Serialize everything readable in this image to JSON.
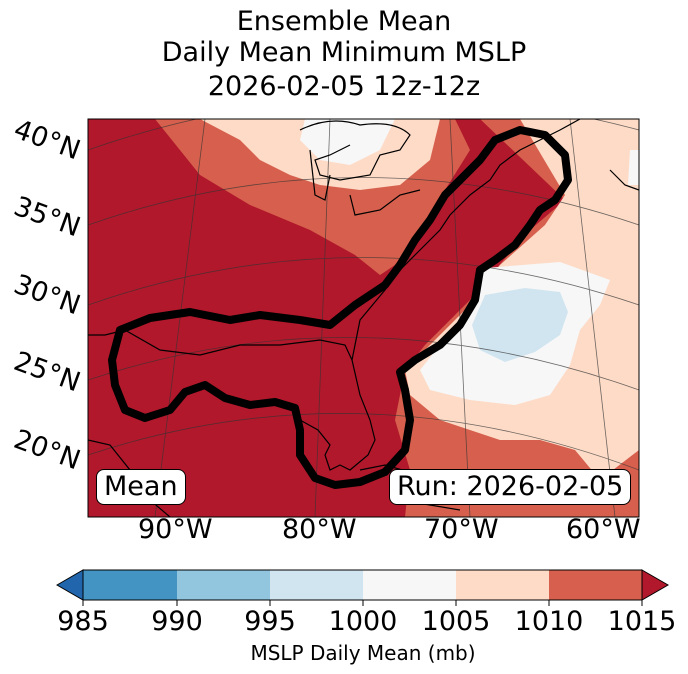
{
  "title": {
    "line1": "Ensemble Mean",
    "line2": "Daily Mean Minimum MSLP",
    "line3": "2026-02-05 12z-12z"
  },
  "map": {
    "lat_labels": [
      "40°N",
      "35°N",
      "30°N",
      "25°N",
      "20°N"
    ],
    "lon_labels": [
      "90°W",
      "80°W",
      "70°W",
      "60°W"
    ],
    "left_box": "Mean",
    "right_box": "Run: 2026-02-05",
    "colors": {
      "c985": "#2166ac",
      "c990": "#4393c3",
      "c995": "#92c5de",
      "c1000": "#d1e5f0",
      "c1005": "#f7f7f7",
      "c1010": "#fddbc7",
      "c1015": "#d6604d",
      "c_over": "#b2182b"
    }
  },
  "colorbar": {
    "ticks": [
      "985",
      "990",
      "995",
      "1000",
      "1005",
      "1010",
      "1015"
    ],
    "label": "MSLP Daily Mean (mb)"
  }
}
